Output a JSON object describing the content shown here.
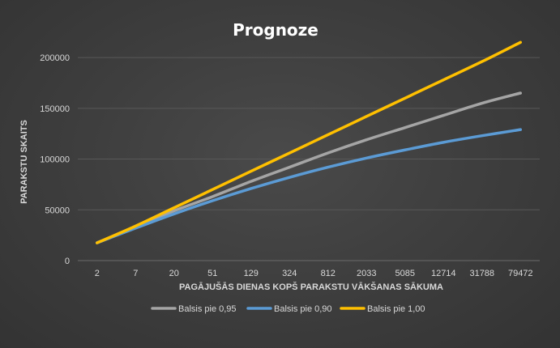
{
  "chart_data": {
    "type": "line",
    "title": "Prognoze",
    "xlabel": "PAGĀJUŠĀS DIENAS KOPŠ PARAKSTU VĀKŠANAS SĀKUMA",
    "ylabel": "PARAKSTU SKAITS",
    "categories": [
      "2",
      "7",
      "20",
      "51",
      "129",
      "324",
      "812",
      "2033",
      "5085",
      "12714",
      "31788",
      "79472"
    ],
    "yticks": [
      "0",
      "50000",
      "100000",
      "150000",
      "200000"
    ],
    "ylim": [
      0,
      220000
    ],
    "grid": true,
    "legend": "bottom",
    "series": [
      {
        "name": "Balsis pie 0,95",
        "color": "#a5a5a5",
        "values": [
          17500,
          33000,
          49000,
          63000,
          78000,
          92000,
          106000,
          119000,
          131000,
          143000,
          155000,
          165000
        ]
      },
      {
        "name": "Balsis pie 0,90",
        "color": "#5b9bd5",
        "values": [
          17500,
          32000,
          46000,
          59000,
          71000,
          82000,
          92000,
          101000,
          109000,
          116500,
          123000,
          129000
        ]
      },
      {
        "name": "Balsis pie 1,00",
        "color": "#ffc000",
        "values": [
          17500,
          34000,
          52000,
          70000,
          88000,
          106000,
          124000,
          142000,
          160000,
          178000,
          196000,
          215000
        ]
      }
    ]
  }
}
